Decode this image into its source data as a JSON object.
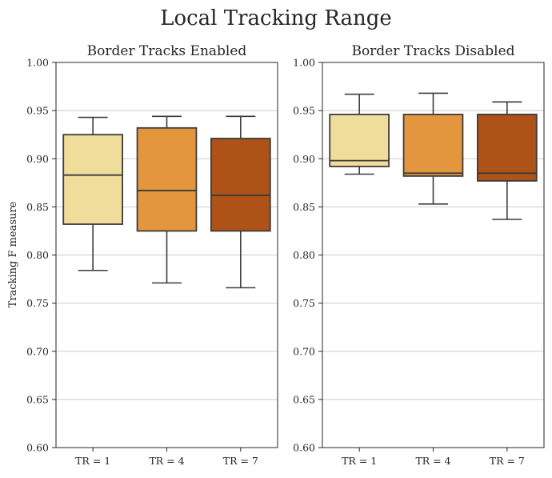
{
  "chart_data": {
    "type": "box",
    "title": "Local Tracking Range",
    "ylabel": "Tracking F measure",
    "ylim": [
      0.6,
      1.0
    ],
    "yticks": [
      "0.60",
      "0.65",
      "0.70",
      "0.75",
      "0.80",
      "0.85",
      "0.90",
      "0.95",
      "1.00"
    ],
    "categories": [
      "TR = 1",
      "TR = 4",
      "TR = 7"
    ],
    "box_colors": [
      "#f0dc9b",
      "#e4963f",
      "#ae5218"
    ],
    "panels": [
      {
        "title": "Border Tracks Enabled",
        "boxes": [
          {
            "whisker_low": 0.784,
            "q1": 0.832,
            "median": 0.883,
            "q3": 0.925,
            "whisker_high": 0.943
          },
          {
            "whisker_low": 0.771,
            "q1": 0.825,
            "median": 0.867,
            "q3": 0.932,
            "whisker_high": 0.944
          },
          {
            "whisker_low": 0.766,
            "q1": 0.825,
            "median": 0.862,
            "q3": 0.921,
            "whisker_high": 0.944
          }
        ]
      },
      {
        "title": "Border Tracks Disabled",
        "boxes": [
          {
            "whisker_low": 0.884,
            "q1": 0.892,
            "median": 0.898,
            "q3": 0.946,
            "whisker_high": 0.967
          },
          {
            "whisker_low": 0.853,
            "q1": 0.882,
            "median": 0.885,
            "q3": 0.946,
            "whisker_high": 0.968
          },
          {
            "whisker_low": 0.837,
            "q1": 0.877,
            "median": 0.885,
            "q3": 0.946,
            "whisker_high": 0.959
          }
        ]
      }
    ]
  }
}
